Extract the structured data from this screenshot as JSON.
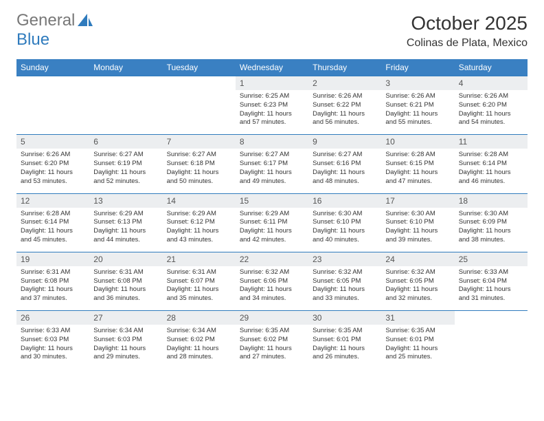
{
  "logo": {
    "text1": "General",
    "text2": "Blue",
    "icon_color": "#2f7bbd"
  },
  "header": {
    "month_year": "October 2025",
    "location": "Colinas de Plata, Mexico"
  },
  "colors": {
    "header_bg": "#3a80c2",
    "header_text": "#ffffff",
    "daynum_bg": "#eceef0",
    "border": "#2f7bbd",
    "body_text": "#333333",
    "logo_gray": "#777777",
    "logo_blue": "#2f7bbd",
    "background": "#ffffff"
  },
  "weekdays": [
    "Sunday",
    "Monday",
    "Tuesday",
    "Wednesday",
    "Thursday",
    "Friday",
    "Saturday"
  ],
  "weeks": [
    [
      null,
      null,
      null,
      {
        "n": "1",
        "sr": "6:25 AM",
        "ss": "6:23 PM",
        "dl": "11 hours and 57 minutes."
      },
      {
        "n": "2",
        "sr": "6:26 AM",
        "ss": "6:22 PM",
        "dl": "11 hours and 56 minutes."
      },
      {
        "n": "3",
        "sr": "6:26 AM",
        "ss": "6:21 PM",
        "dl": "11 hours and 55 minutes."
      },
      {
        "n": "4",
        "sr": "6:26 AM",
        "ss": "6:20 PM",
        "dl": "11 hours and 54 minutes."
      }
    ],
    [
      {
        "n": "5",
        "sr": "6:26 AM",
        "ss": "6:20 PM",
        "dl": "11 hours and 53 minutes."
      },
      {
        "n": "6",
        "sr": "6:27 AM",
        "ss": "6:19 PM",
        "dl": "11 hours and 52 minutes."
      },
      {
        "n": "7",
        "sr": "6:27 AM",
        "ss": "6:18 PM",
        "dl": "11 hours and 50 minutes."
      },
      {
        "n": "8",
        "sr": "6:27 AM",
        "ss": "6:17 PM",
        "dl": "11 hours and 49 minutes."
      },
      {
        "n": "9",
        "sr": "6:27 AM",
        "ss": "6:16 PM",
        "dl": "11 hours and 48 minutes."
      },
      {
        "n": "10",
        "sr": "6:28 AM",
        "ss": "6:15 PM",
        "dl": "11 hours and 47 minutes."
      },
      {
        "n": "11",
        "sr": "6:28 AM",
        "ss": "6:14 PM",
        "dl": "11 hours and 46 minutes."
      }
    ],
    [
      {
        "n": "12",
        "sr": "6:28 AM",
        "ss": "6:14 PM",
        "dl": "11 hours and 45 minutes."
      },
      {
        "n": "13",
        "sr": "6:29 AM",
        "ss": "6:13 PM",
        "dl": "11 hours and 44 minutes."
      },
      {
        "n": "14",
        "sr": "6:29 AM",
        "ss": "6:12 PM",
        "dl": "11 hours and 43 minutes."
      },
      {
        "n": "15",
        "sr": "6:29 AM",
        "ss": "6:11 PM",
        "dl": "11 hours and 42 minutes."
      },
      {
        "n": "16",
        "sr": "6:30 AM",
        "ss": "6:10 PM",
        "dl": "11 hours and 40 minutes."
      },
      {
        "n": "17",
        "sr": "6:30 AM",
        "ss": "6:10 PM",
        "dl": "11 hours and 39 minutes."
      },
      {
        "n": "18",
        "sr": "6:30 AM",
        "ss": "6:09 PM",
        "dl": "11 hours and 38 minutes."
      }
    ],
    [
      {
        "n": "19",
        "sr": "6:31 AM",
        "ss": "6:08 PM",
        "dl": "11 hours and 37 minutes."
      },
      {
        "n": "20",
        "sr": "6:31 AM",
        "ss": "6:08 PM",
        "dl": "11 hours and 36 minutes."
      },
      {
        "n": "21",
        "sr": "6:31 AM",
        "ss": "6:07 PM",
        "dl": "11 hours and 35 minutes."
      },
      {
        "n": "22",
        "sr": "6:32 AM",
        "ss": "6:06 PM",
        "dl": "11 hours and 34 minutes."
      },
      {
        "n": "23",
        "sr": "6:32 AM",
        "ss": "6:05 PM",
        "dl": "11 hours and 33 minutes."
      },
      {
        "n": "24",
        "sr": "6:32 AM",
        "ss": "6:05 PM",
        "dl": "11 hours and 32 minutes."
      },
      {
        "n": "25",
        "sr": "6:33 AM",
        "ss": "6:04 PM",
        "dl": "11 hours and 31 minutes."
      }
    ],
    [
      {
        "n": "26",
        "sr": "6:33 AM",
        "ss": "6:03 PM",
        "dl": "11 hours and 30 minutes."
      },
      {
        "n": "27",
        "sr": "6:34 AM",
        "ss": "6:03 PM",
        "dl": "11 hours and 29 minutes."
      },
      {
        "n": "28",
        "sr": "6:34 AM",
        "ss": "6:02 PM",
        "dl": "11 hours and 28 minutes."
      },
      {
        "n": "29",
        "sr": "6:35 AM",
        "ss": "6:02 PM",
        "dl": "11 hours and 27 minutes."
      },
      {
        "n": "30",
        "sr": "6:35 AM",
        "ss": "6:01 PM",
        "dl": "11 hours and 26 minutes."
      },
      {
        "n": "31",
        "sr": "6:35 AM",
        "ss": "6:01 PM",
        "dl": "11 hours and 25 minutes."
      },
      null
    ]
  ],
  "labels": {
    "sunrise": "Sunrise:",
    "sunset": "Sunset:",
    "daylight": "Daylight:"
  }
}
